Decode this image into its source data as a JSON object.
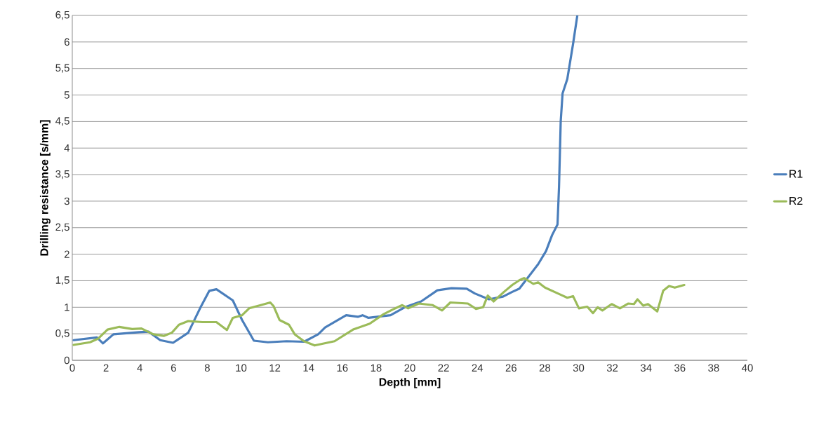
{
  "chart_data": {
    "type": "line",
    "xlabel": "Depth [mm]",
    "ylabel": "Drilling resistance [s/mm]",
    "xlim": [
      0,
      40
    ],
    "xticks": [
      0,
      2,
      4,
      6,
      8,
      10,
      12,
      14,
      16,
      18,
      20,
      22,
      24,
      26,
      28,
      30,
      32,
      34,
      36,
      38,
      40
    ],
    "ylim": [
      0,
      6.5
    ],
    "yticks": [
      0,
      {
        "value": 0.5,
        "label": "0,5"
      },
      1,
      {
        "value": 1.5,
        "label": "1,5"
      },
      2,
      {
        "value": 2.5,
        "label": "2,5"
      },
      3,
      {
        "value": 3.5,
        "label": "3,5"
      },
      4,
      {
        "value": 4.5,
        "label": "4,5"
      },
      5,
      {
        "value": 5.5,
        "label": "5,5"
      },
      6,
      {
        "value": 6.5,
        "label": "6,5"
      }
    ],
    "grid": "y",
    "legend": "right",
    "marker": "none",
    "line_style": "solid",
    "series": [
      {
        "name": "R1",
        "color": "#4a7ebb",
        "x": [
          0.08,
          1.46,
          1.82,
          2.44,
          3.96,
          4.52,
          5.21,
          5.97,
          6.87,
          7.57,
          8.12,
          8.54,
          9.51,
          10.06,
          10.76,
          11.59,
          12.7,
          13.73,
          14.57,
          14.98,
          16.23,
          16.92,
          17.2,
          17.55,
          18.86,
          19.7,
          20.67,
          21.63,
          22.47,
          23.37,
          23.85,
          24.69,
          25.52,
          26.07,
          26.49,
          26.97,
          27.6,
          28.07,
          28.43,
          28.75,
          28.84,
          28.94,
          29.05,
          29.33,
          29.67,
          29.92
        ],
        "values": [
          0.38,
          0.43,
          0.32,
          0.49,
          0.53,
          0.54,
          0.38,
          0.33,
          0.52,
          0.98,
          1.31,
          1.34,
          1.13,
          0.76,
          0.37,
          0.34,
          0.36,
          0.35,
          0.49,
          0.62,
          0.85,
          0.82,
          0.85,
          0.8,
          0.85,
          1.0,
          1.11,
          1.32,
          1.36,
          1.35,
          1.26,
          1.15,
          1.2,
          1.29,
          1.35,
          1.55,
          1.81,
          2.06,
          2.36,
          2.56,
          3.27,
          4.5,
          5.03,
          5.3,
          5.96,
          6.49
        ]
      },
      {
        "name": "R2",
        "color": "#9bbb59",
        "x": [
          0.08,
          1.05,
          1.54,
          2.09,
          2.79,
          3.55,
          4.1,
          4.8,
          5.42,
          5.9,
          6.32,
          6.87,
          7.71,
          8.54,
          9.16,
          9.51,
          10.06,
          10.48,
          11.17,
          11.73,
          11.93,
          12.28,
          12.84,
          13.18,
          13.73,
          14.36,
          15.54,
          16.64,
          17.62,
          18.45,
          19.0,
          19.55,
          19.9,
          20.53,
          21.36,
          21.91,
          22.4,
          23.44,
          23.92,
          24.34,
          24.62,
          24.96,
          25.58,
          26.07,
          26.49,
          26.77,
          27.32,
          27.6,
          28.01,
          28.91,
          29.33,
          29.67,
          30.02,
          30.51,
          30.85,
          31.13,
          31.41,
          31.96,
          32.45,
          32.93,
          33.28,
          33.49,
          33.83,
          34.11,
          34.66,
          35.01,
          35.36,
          35.7,
          36.26
        ],
        "values": [
          0.29,
          0.34,
          0.41,
          0.58,
          0.63,
          0.59,
          0.6,
          0.49,
          0.46,
          0.52,
          0.67,
          0.74,
          0.72,
          0.72,
          0.57,
          0.8,
          0.85,
          0.98,
          1.04,
          1.09,
          1.02,
          0.76,
          0.67,
          0.49,
          0.36,
          0.28,
          0.36,
          0.58,
          0.69,
          0.87,
          0.96,
          1.04,
          0.98,
          1.07,
          1.04,
          0.94,
          1.09,
          1.07,
          0.97,
          1.0,
          1.22,
          1.11,
          1.29,
          1.42,
          1.51,
          1.55,
          1.44,
          1.47,
          1.37,
          1.24,
          1.18,
          1.21,
          0.98,
          1.01,
          0.89,
          1.0,
          0.94,
          1.06,
          0.98,
          1.07,
          1.06,
          1.15,
          1.03,
          1.06,
          0.92,
          1.31,
          1.4,
          1.37,
          1.42
        ]
      }
    ]
  }
}
